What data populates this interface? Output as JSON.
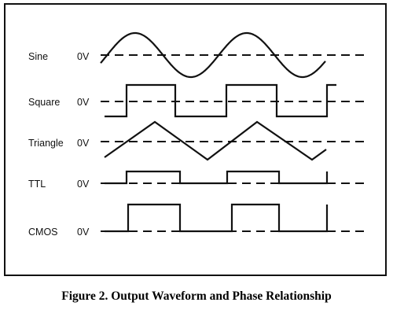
{
  "caption": "Figure 2. Output Waveform and Phase Relationship",
  "waveforms": [
    {
      "name": "Sine",
      "ref_label": "0V",
      "shape": "sine"
    },
    {
      "name": "Square",
      "ref_label": "0V",
      "shape": "square"
    },
    {
      "name": "Triangle",
      "ref_label": "0V",
      "shape": "triangle"
    },
    {
      "name": "TTL",
      "ref_label": "0V",
      "shape": "ttl"
    },
    {
      "name": "CMOS",
      "ref_label": "0V",
      "shape": "cmos"
    }
  ],
  "colors": {
    "ink": "#111111",
    "background": "#ffffff"
  }
}
